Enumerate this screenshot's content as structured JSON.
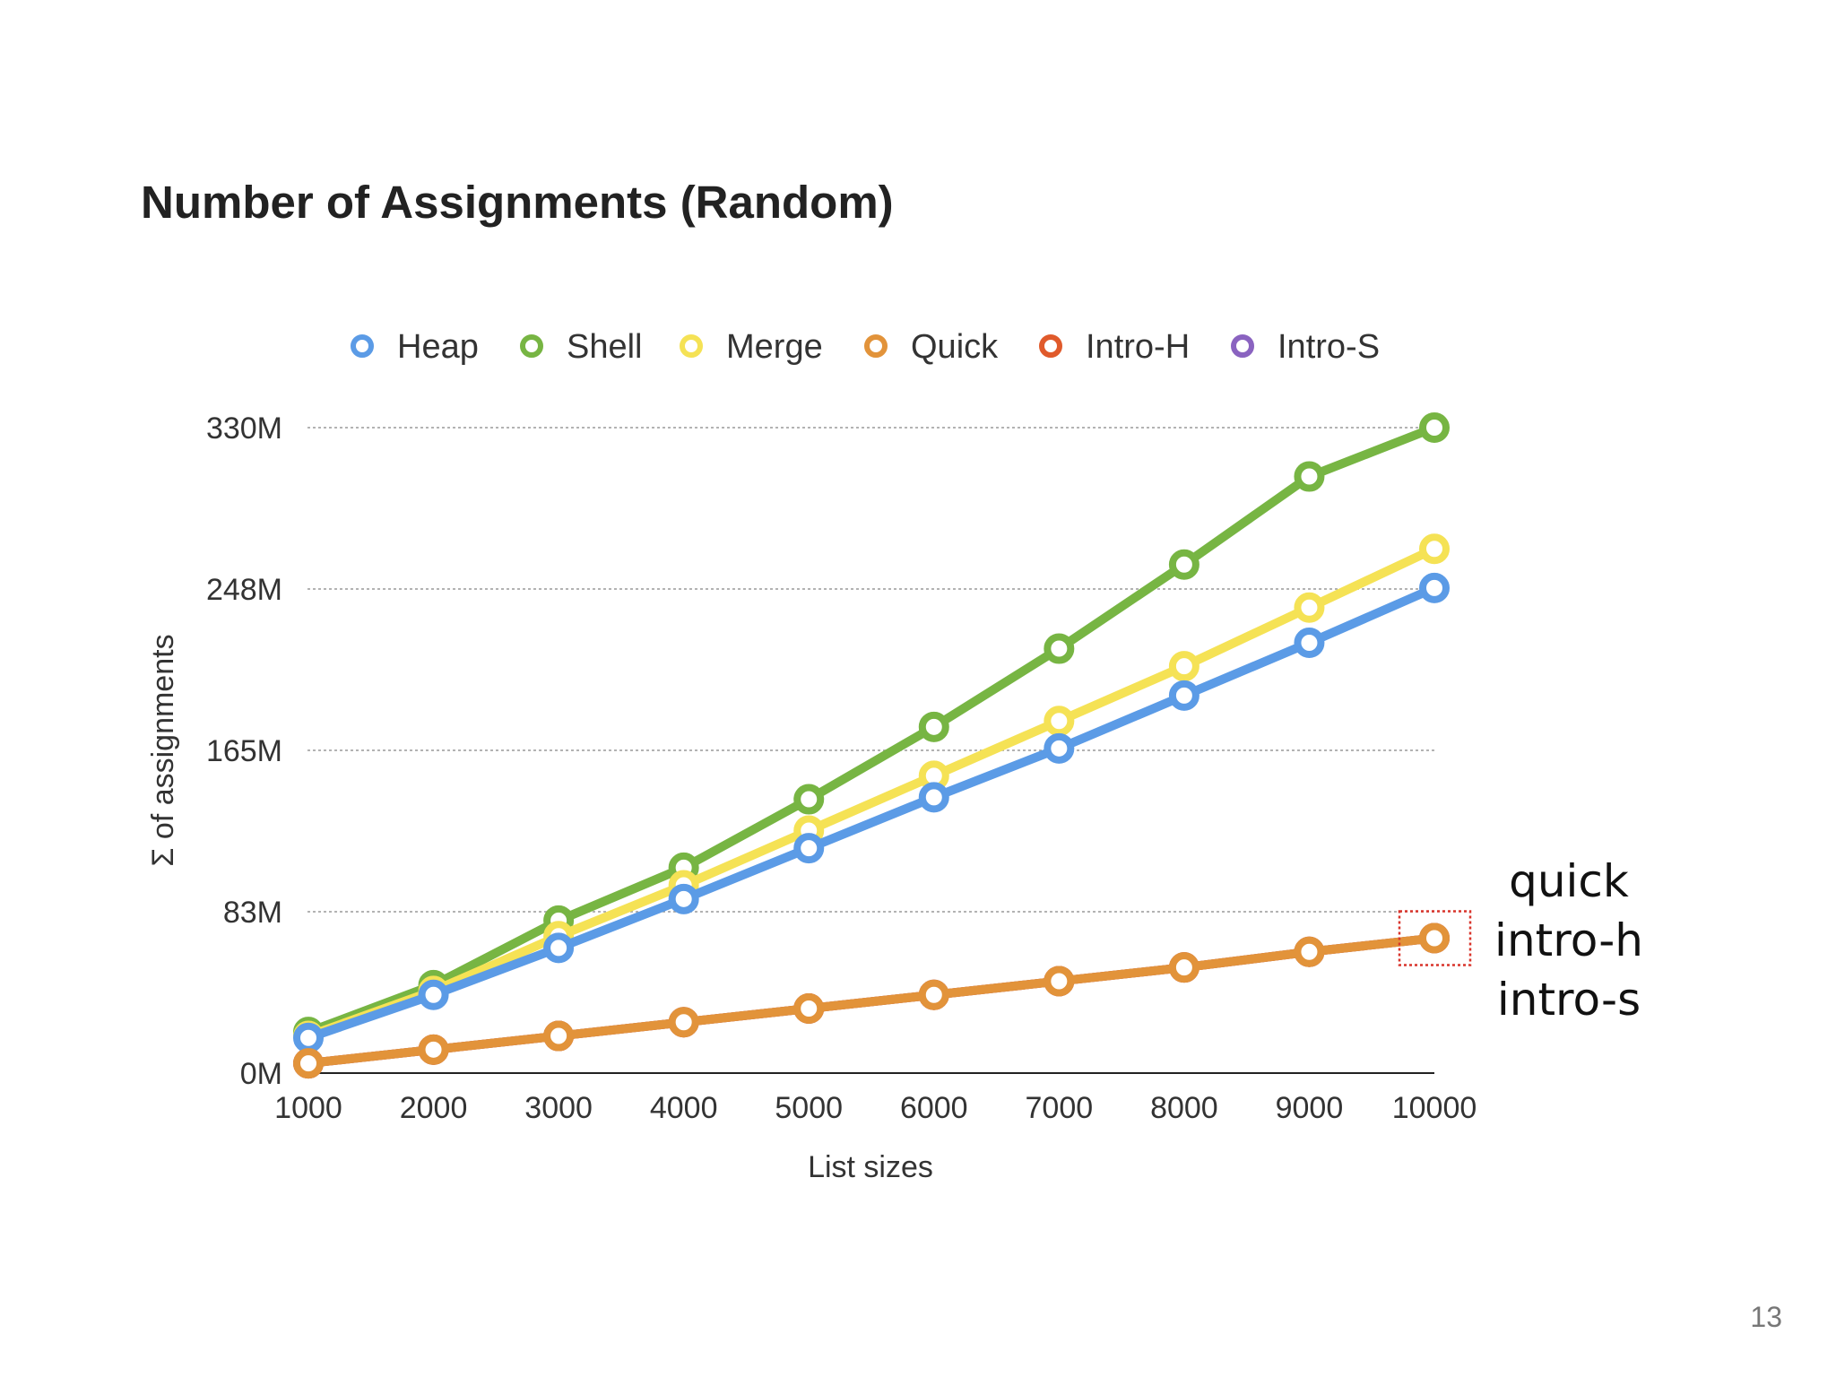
{
  "slide": {
    "title": "Number of Assignments (Random)",
    "page_number": "13",
    "annotation_lines": [
      "quick",
      "intro-h",
      "intro-s"
    ]
  },
  "chart_data": {
    "type": "line",
    "title": "",
    "xlabel": "List sizes",
    "ylabel": "Σ of assignments",
    "x": [
      1000,
      2000,
      3000,
      4000,
      5000,
      6000,
      7000,
      8000,
      9000,
      10000
    ],
    "x_tick_labels": [
      "1000",
      "2000",
      "3000",
      "4000",
      "5000",
      "6000",
      "7000",
      "8000",
      "9000",
      "10000"
    ],
    "ylim": [
      0,
      330
    ],
    "y_unit": "M",
    "y_ticks": [
      0,
      82.5,
      165,
      247.5,
      330
    ],
    "y_tick_labels": [
      "0M",
      "83M",
      "165M",
      "248M",
      "330M"
    ],
    "grid": true,
    "legend_position": "top",
    "highlight": {
      "x": 10000,
      "series": "Quick",
      "style": "dotted red box"
    },
    "series": [
      {
        "name": "Heap",
        "color": "#5b9be6",
        "values": [
          18,
          40,
          64,
          89,
          115,
          141,
          166,
          193,
          220,
          248
        ]
      },
      {
        "name": "Shell",
        "color": "#77b543",
        "values": [
          21,
          45,
          78,
          105,
          140,
          177,
          217,
          260,
          305,
          330
        ]
      },
      {
        "name": "Merge",
        "color": "#f5e255",
        "values": [
          19,
          42,
          70,
          96,
          124,
          152,
          180,
          208,
          238,
          268
        ]
      },
      {
        "name": "Quick",
        "color": "#e2933a",
        "values": [
          5,
          12,
          19,
          26,
          33,
          40,
          47,
          54,
          62,
          69
        ]
      },
      {
        "name": "Intro-H",
        "color": "#e05a2b",
        "values": [
          5,
          12,
          19,
          26,
          33,
          40,
          47,
          54,
          62,
          69
        ]
      },
      {
        "name": "Intro-S",
        "color": "#8a63c0",
        "values": [
          5,
          12,
          19,
          26,
          33,
          40,
          47,
          54,
          62,
          69
        ]
      }
    ]
  }
}
